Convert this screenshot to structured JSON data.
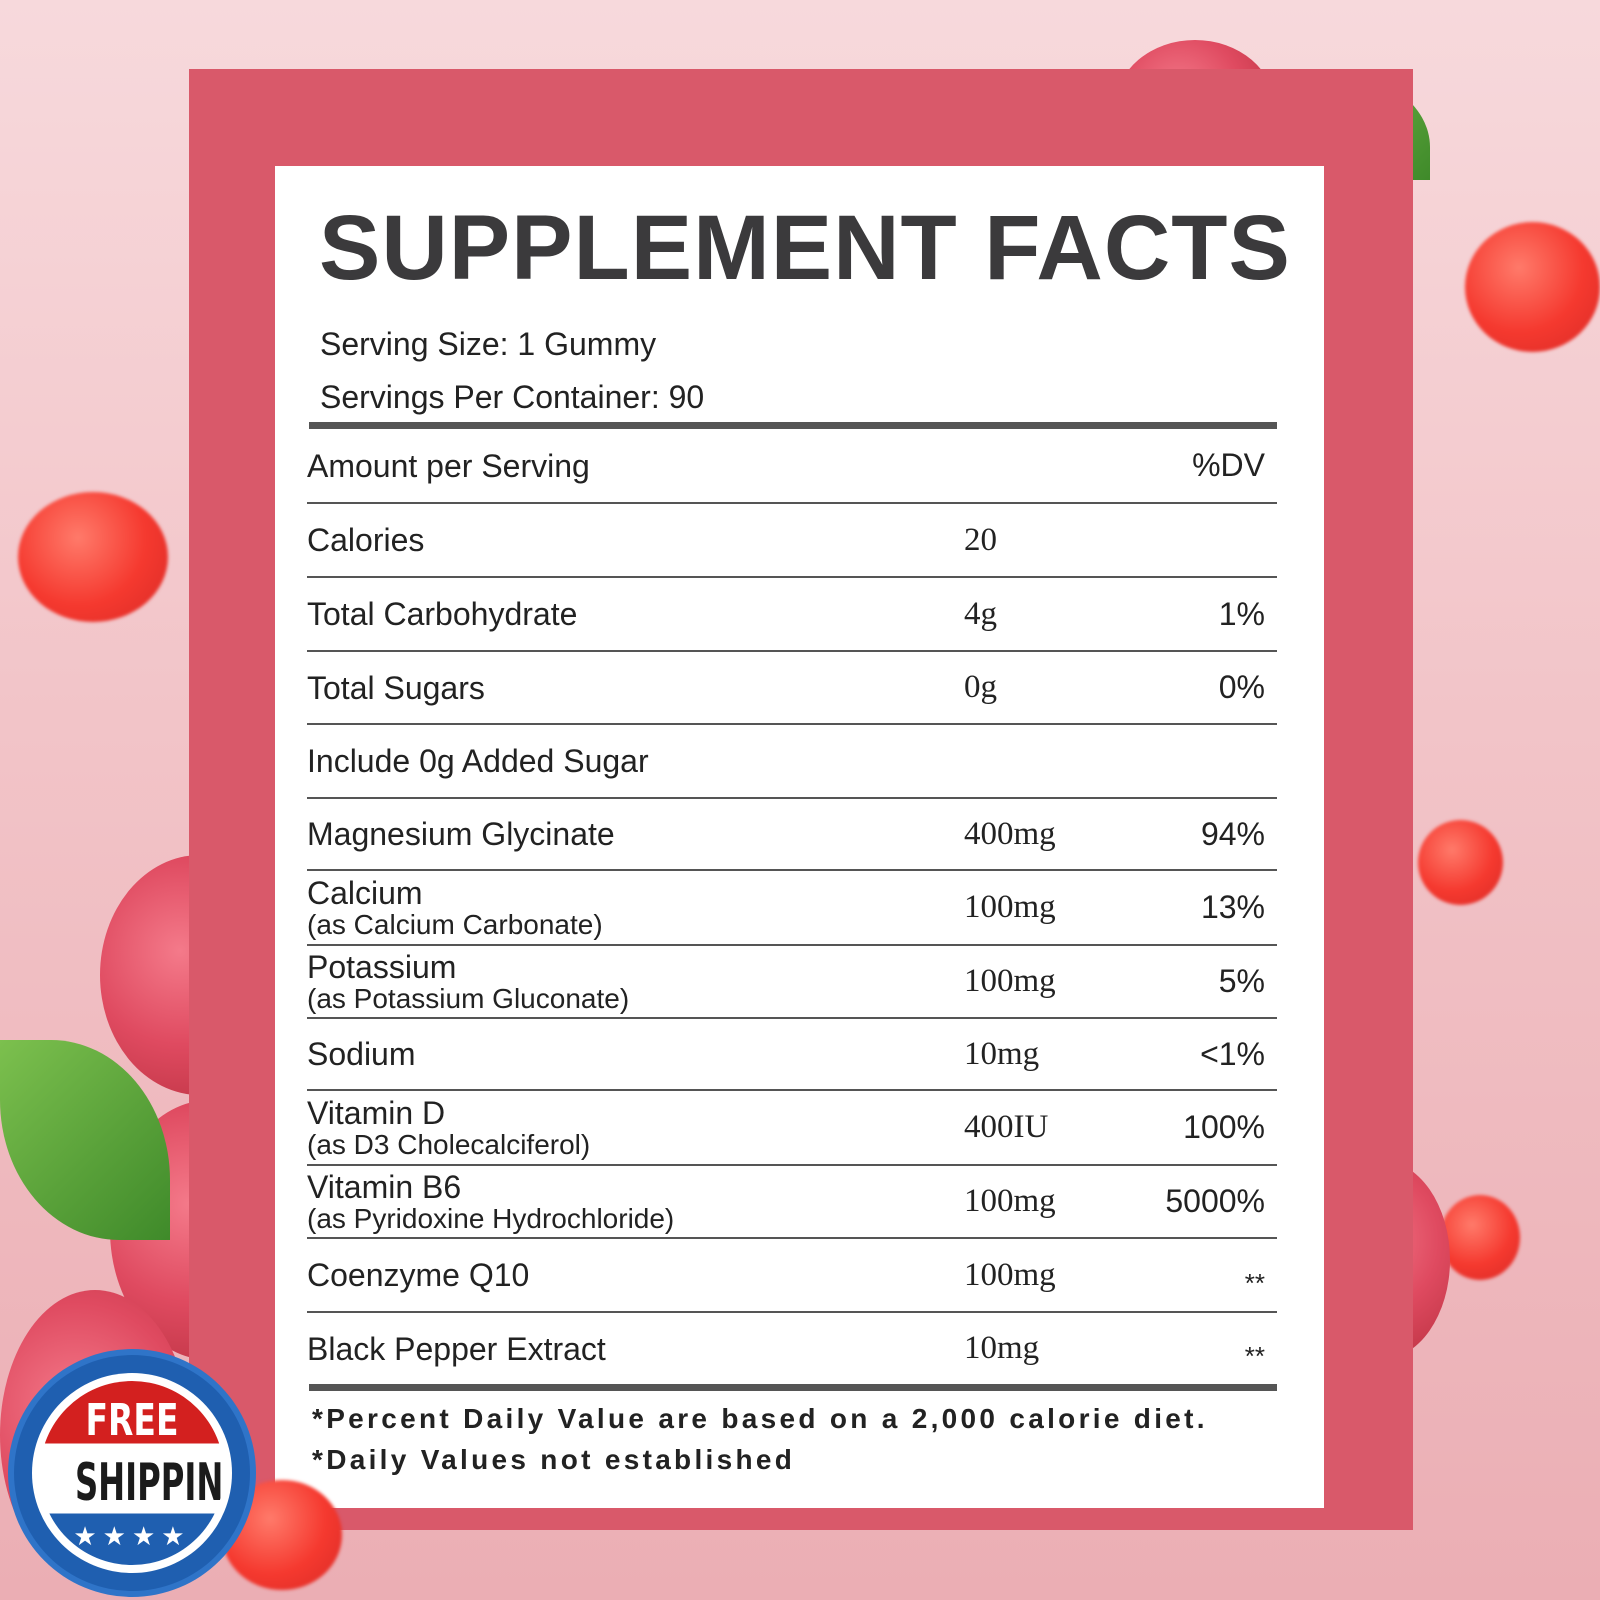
{
  "title": "SUPPLEMENT FACTS",
  "serving_size": "Serving Size: 1 Gummy",
  "servings_per_container": "Servings Per Container: 90",
  "header": {
    "amount": "Amount per Serving",
    "dv": "%DV"
  },
  "rows": [
    {
      "name": "Calories",
      "sub": "",
      "amount": "20",
      "dv": ""
    },
    {
      "name": "Total Carbohydrate",
      "sub": "",
      "amount": "4g",
      "dv": "1%"
    },
    {
      "name": "Total Sugars",
      "sub": "",
      "amount": "0g",
      "dv": "0%"
    },
    {
      "name": "Include 0g Added Sugar",
      "sub": "",
      "amount": "",
      "dv": ""
    },
    {
      "name": "Magnesium Glycinate",
      "sub": "",
      "amount": "400mg",
      "dv": "94%"
    },
    {
      "name": "Calcium",
      "sub": "(as Calcium Carbonate)",
      "amount": "100mg",
      "dv": "13%"
    },
    {
      "name": "Potassium",
      "sub": "(as Potassium Gluconate)",
      "amount": "100mg",
      "dv": "5%"
    },
    {
      "name": "Sodium",
      "sub": "",
      "amount": "10mg",
      "dv": "<1%"
    },
    {
      "name": "Vitamin D",
      "sub": "(as D3 Cholecalciferol)",
      "amount": "400IU",
      "dv": "100%"
    },
    {
      "name": "Vitamin B6",
      "sub": "(as Pyridoxine Hydrochloride)",
      "amount": "100mg",
      "dv": "5000%"
    },
    {
      "name": "Coenzyme Q10",
      "sub": "",
      "amount": "100mg",
      "dv": "**"
    },
    {
      "name": "Black Pepper Extract",
      "sub": "",
      "amount": "10mg",
      "dv": "**"
    }
  ],
  "footnotes": [
    "*Percent Daily Value are based on a 2,000 calorie diet.",
    "*Daily Values not established"
  ],
  "badge": {
    "top": "FREE",
    "main": "SHIPPING",
    "stars": "★★★★"
  },
  "colors": {
    "frame": "#d9596a",
    "background": "#f2c4c8",
    "text": "#3b3a3c",
    "badge_blue": "#1f5fb0",
    "badge_red": "#d3201f"
  }
}
